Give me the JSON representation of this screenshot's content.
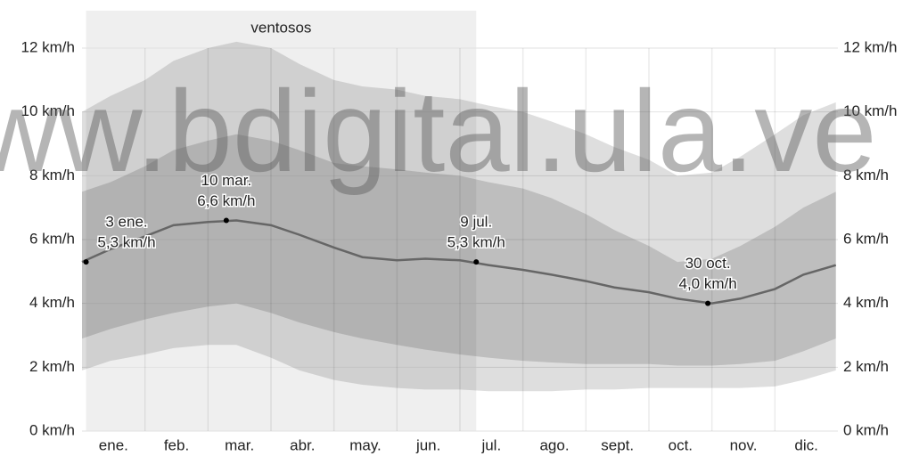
{
  "chart_data": {
    "type": "line",
    "watermark": "www.bdigital.ula.ve",
    "categories": [
      "ene.",
      "feb.",
      "mar.",
      "abr.",
      "may.",
      "jun.",
      "jul.",
      "ago.",
      "sept.",
      "oct.",
      "nov.",
      "dic."
    ],
    "x": [
      "1 ene.",
      "15 ene.",
      "1 feb.",
      "15 feb.",
      "1 mar.",
      "15 mar.",
      "1 abr.",
      "15 abr.",
      "1 may.",
      "15 may.",
      "1 jun.",
      "15 jun.",
      "1 jul.",
      "15 jul.",
      "1 ago.",
      "15 ago.",
      "1 sept.",
      "15 sept.",
      "1 oct.",
      "15 oct.",
      "1 nov.",
      "15 nov.",
      "1 dic.",
      "15 dic.",
      "31 dic."
    ],
    "bands": [
      {
        "color": "rgba(0,0,0,0.13)",
        "upper": [
          10.0,
          10.5,
          11.0,
          11.6,
          12.0,
          12.2,
          12.0,
          11.5,
          11.0,
          10.8,
          10.7,
          10.5,
          10.4,
          10.2,
          10.0,
          9.7,
          9.3,
          8.9,
          8.5,
          8.0,
          8.1,
          8.6,
          9.3,
          9.9,
          10.3
        ],
        "lower": [
          1.9,
          2.2,
          2.4,
          2.6,
          2.7,
          2.7,
          2.3,
          1.9,
          1.6,
          1.45,
          1.35,
          1.3,
          1.3,
          1.25,
          1.25,
          1.25,
          1.3,
          1.3,
          1.35,
          1.35,
          1.35,
          1.35,
          1.4,
          1.6,
          1.9
        ]
      },
      {
        "color": "rgba(0,0,0,0.14)",
        "upper": [
          7.5,
          7.8,
          8.3,
          8.8,
          9.1,
          9.3,
          9.1,
          8.8,
          8.4,
          8.3,
          8.2,
          8.1,
          8.0,
          7.8,
          7.6,
          7.3,
          6.8,
          6.3,
          5.8,
          5.3,
          5.4,
          5.8,
          6.4,
          7.0,
          7.5
        ],
        "lower": [
          2.9,
          3.2,
          3.5,
          3.7,
          3.9,
          4.0,
          3.7,
          3.4,
          3.1,
          2.9,
          2.7,
          2.55,
          2.4,
          2.3,
          2.2,
          2.15,
          2.1,
          2.1,
          2.1,
          2.05,
          2.05,
          2.1,
          2.2,
          2.5,
          2.9
        ]
      }
    ],
    "series": [
      {
        "color": "#666666",
        "values": [
          5.3,
          5.7,
          6.1,
          6.45,
          6.55,
          6.6,
          6.45,
          6.15,
          5.75,
          5.45,
          5.35,
          5.4,
          5.35,
          5.2,
          5.05,
          4.9,
          4.7,
          4.5,
          4.35,
          4.15,
          4.0,
          4.15,
          4.45,
          4.9,
          5.2
        ]
      }
    ],
    "highlight": {
      "label": "ventosos",
      "start": "3 ene.",
      "end": "9 jul.",
      "color": "#efefef"
    },
    "annotations": [
      {
        "date": "3 ene.",
        "value": 5.3,
        "value_label": "5,3 km/h"
      },
      {
        "date": "10 mar.",
        "value": 6.6,
        "value_label": "6,6 km/h"
      },
      {
        "date": "9 jul.",
        "value": 5.3,
        "value_label": "5,3 km/h"
      },
      {
        "date": "30 oct.",
        "value": 4.0,
        "value_label": "4,0 km/h"
      }
    ],
    "ylim": [
      0,
      12
    ],
    "yticks": [
      {
        "value": 0,
        "label": "0 km/h"
      },
      {
        "value": 2,
        "label": "2 km/h"
      },
      {
        "value": 4,
        "label": "4 km/h"
      },
      {
        "value": 6,
        "label": "6 km/h"
      },
      {
        "value": 8,
        "label": "8 km/h"
      },
      {
        "value": 10,
        "label": "10 km/h"
      },
      {
        "value": 12,
        "label": "12 km/h"
      }
    ],
    "grid": true
  }
}
